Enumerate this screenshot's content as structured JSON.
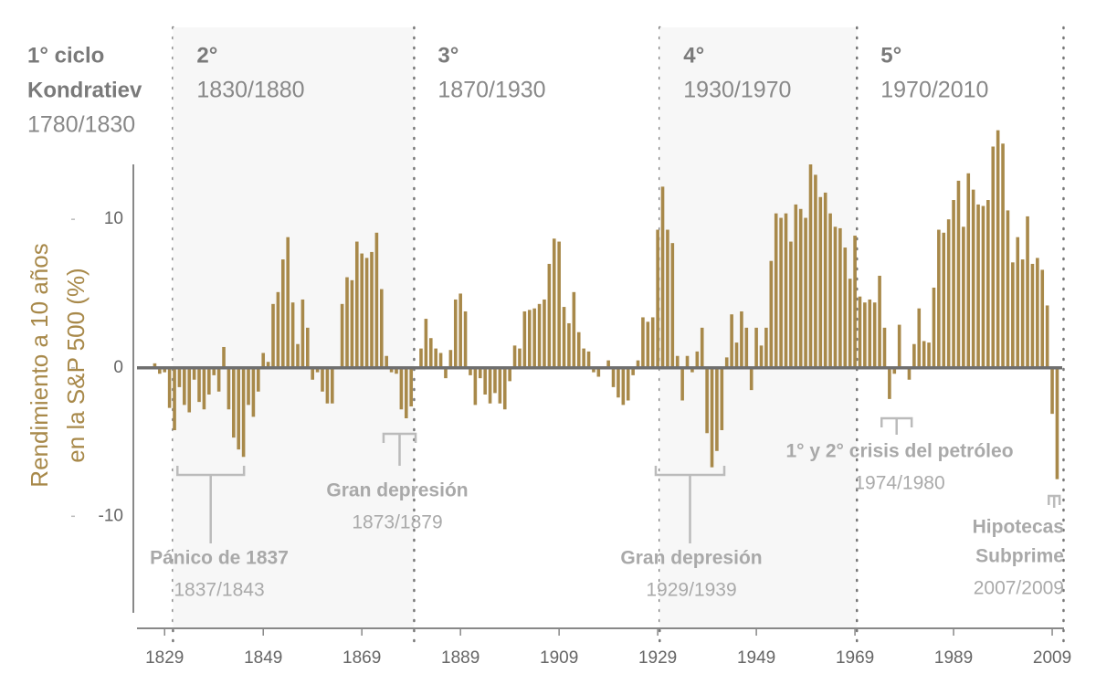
{
  "chart_data": {
    "type": "bar",
    "y_label_lines": [
      "Rendimiento a 10 años",
      "en la S&P 500  (%)"
    ],
    "x": [
      1827,
      1828,
      1829,
      1830,
      1831,
      1832,
      1833,
      1834,
      1835,
      1836,
      1837,
      1838,
      1839,
      1840,
      1841,
      1842,
      1843,
      1844,
      1845,
      1846,
      1847,
      1848,
      1849,
      1850,
      1851,
      1852,
      1853,
      1854,
      1855,
      1856,
      1857,
      1858,
      1859,
      1860,
      1861,
      1862,
      1863,
      1864,
      1865,
      1866,
      1867,
      1868,
      1869,
      1870,
      1871,
      1872,
      1873,
      1874,
      1875,
      1876,
      1877,
      1878,
      1879,
      1880,
      1881,
      1882,
      1883,
      1884,
      1885,
      1886,
      1887,
      1888,
      1889,
      1890,
      1891,
      1892,
      1893,
      1894,
      1895,
      1896,
      1897,
      1898,
      1899,
      1900,
      1901,
      1902,
      1903,
      1904,
      1905,
      1906,
      1907,
      1908,
      1909,
      1910,
      1911,
      1912,
      1913,
      1914,
      1915,
      1916,
      1917,
      1918,
      1919,
      1920,
      1921,
      1922,
      1923,
      1924,
      1925,
      1926,
      1927,
      1928,
      1929,
      1930,
      1931,
      1932,
      1933,
      1934,
      1935,
      1936,
      1937,
      1938,
      1939,
      1940,
      1941,
      1942,
      1943,
      1944,
      1945,
      1946,
      1947,
      1948,
      1949,
      1950,
      1951,
      1952,
      1953,
      1954,
      1955,
      1956,
      1957,
      1958,
      1959,
      1960,
      1961,
      1962,
      1963,
      1964,
      1965,
      1966,
      1967,
      1968,
      1969,
      1970,
      1971,
      1972,
      1973,
      1974,
      1975,
      1976,
      1977,
      1978,
      1979,
      1980,
      1981,
      1982,
      1983,
      1984,
      1985,
      1986,
      1987,
      1988,
      1989,
      1990,
      1991,
      1992,
      1993,
      1994,
      1995,
      1996,
      1997,
      1998,
      1999,
      2000,
      2001,
      2002,
      2003,
      2004,
      2005,
      2006,
      2007,
      2008,
      2009,
      2010
    ],
    "values": [
      0.3,
      -0.4,
      -0.3,
      -2.7,
      -4.2,
      -1.3,
      -2.5,
      -3.0,
      -0.8,
      -2.3,
      -2.8,
      -1.8,
      -0.5,
      -1.6,
      1.4,
      -2.8,
      -4.7,
      -5.5,
      -6.0,
      -2.5,
      -3.3,
      -1.6,
      1.0,
      0.4,
      4.3,
      5.1,
      7.3,
      8.8,
      4.4,
      1.6,
      4.6,
      2.7,
      -0.8,
      -0.3,
      -1.6,
      -2.4,
      -2.4,
      0,
      4.3,
      6.1,
      5.9,
      8.5,
      7.7,
      7.4,
      7.8,
      9.1,
      5.3,
      0.8,
      -0.3,
      -0.4,
      -2.8,
      -3.4,
      -2.6,
      0,
      1.3,
      3.3,
      2.0,
      1.3,
      1.0,
      -0.7,
      1.2,
      4.6,
      5.0,
      3.8,
      -0.5,
      -2.5,
      -0.7,
      -1.8,
      -2.4,
      -1.7,
      -2.4,
      -2.8,
      -0.9,
      1.5,
      1.3,
      3.8,
      3.9,
      4.0,
      4.3,
      4.6,
      7.0,
      8.7,
      8.5,
      4.1,
      3.0,
      5.1,
      2.4,
      1.3,
      1.1,
      -0.3,
      -0.6,
      0,
      0.5,
      -1.3,
      -2.0,
      -2.5,
      -2.2,
      -0.5,
      0.5,
      3.4,
      3.1,
      3.4,
      9.3,
      12.2,
      9.3,
      8.4,
      0.8,
      -2.2,
      0.8,
      -0.3,
      1.1,
      2.7,
      -4.4,
      -6.7,
      -5.6,
      -4.2,
      0.7,
      3.6,
      1.7,
      3.8,
      2.7,
      -1.5,
      2.7,
      1.5,
      2.7,
      7.2,
      10.4,
      10.1,
      10.4,
      8.5,
      11.0,
      10.7,
      10.1,
      13.7,
      13.0,
      11.5,
      11.8,
      10.4,
      9.5,
      9.4,
      8.1,
      6.0,
      8.9,
      4.8,
      4.4,
      4.6,
      4.4,
      6.2,
      2.7,
      -2.1,
      -0.4,
      2.9,
      0,
      -0.8,
      1.6,
      4.0,
      1.8,
      1.7,
      5.4,
      9.3,
      9.1,
      10.0,
      11.3,
      12.6,
      9.5,
      13.1,
      12.0,
      11.0,
      10.9,
      11.3,
      14.9,
      16.0,
      15.1,
      10.6,
      7.1,
      8.8,
      7.3,
      10.2,
      7.0,
      7.4,
      6.6,
      4.2,
      -3.1,
      -7.5
    ],
    "color": "#a8894a",
    "xlim": [
      1823.4,
      2011.4
    ],
    "xticks": [
      1829,
      1849,
      1869,
      1889,
      1909,
      1929,
      1949,
      1969,
      1989,
      2009
    ],
    "ylim": [
      -16.5,
      13.7
    ],
    "yticks": [
      -10,
      0,
      10
    ],
    "cycles": [
      {
        "lines": [
          "1° ciclo",
          "Kondratiev"
        ],
        "period": "1780/1830",
        "end": 1830.7,
        "shaded": false
      },
      {
        "lines": [
          "2°"
        ],
        "period": "1830/1880",
        "end": 1879.6,
        "shaded": true
      },
      {
        "lines": [
          "3°"
        ],
        "period": "1870/1930",
        "end": 1929.4,
        "shaded": false
      },
      {
        "lines": [
          "4°"
        ],
        "period": "1930/1970",
        "end": 1969.4,
        "shaded": true
      },
      {
        "lines": [
          "5°"
        ],
        "period": "1970/2010",
        "end": 2011.3,
        "shaded": false
      }
    ],
    "annotations": [
      {
        "lines": [
          "Pánico de 1837"
        ],
        "period": "1837/1843",
        "start": 1831.6,
        "end": 1845.1
      },
      {
        "lines": [
          "Gran depresión"
        ],
        "period": "1873/1879",
        "start": 1873.4,
        "end": 1879.9
      },
      {
        "lines": [
          "Gran depresión"
        ],
        "period": "1929/1939",
        "start": 1928.6,
        "end": 1942.5
      },
      {
        "lines": [
          "1° y 2° crisis del petróleo"
        ],
        "period": "1974/1980",
        "start": 1974.4,
        "end": 1980.5
      },
      {
        "lines": [
          "Hipotecas",
          "Subprime"
        ],
        "period": "2007/2009",
        "start": 2008.3,
        "end": 2010.5
      }
    ]
  }
}
